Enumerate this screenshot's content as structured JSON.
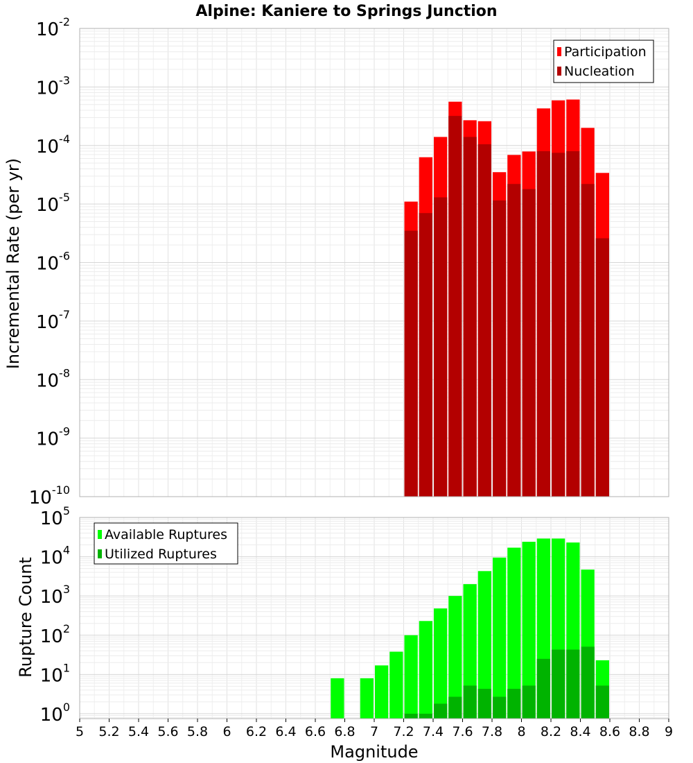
{
  "chart_data": [
    {
      "type": "bar",
      "title": "Alpine: Kaniere to Springs Junction",
      "ylabel": "Incremental Rate (per yr)",
      "xlabel": "",
      "xlim": [
        5,
        9
      ],
      "ylim": [
        1e-10,
        0.01
      ],
      "yscale": "log",
      "grid": true,
      "legend_position": "top-right",
      "x_ticks": [
        "5",
        "5.2",
        "5.4",
        "5.6",
        "5.8",
        "6",
        "6.2",
        "6.4",
        "6.6",
        "6.8",
        "7",
        "7.2",
        "7.4",
        "7.6",
        "7.8",
        "8",
        "8.2",
        "8.4",
        "8.6",
        "8.8",
        "9"
      ],
      "y_ticks": [
        {
          "base": "10",
          "exp": "-10"
        },
        {
          "base": "10",
          "exp": "-9"
        },
        {
          "base": "10",
          "exp": "-8"
        },
        {
          "base": "10",
          "exp": "-7"
        },
        {
          "base": "10",
          "exp": "-6"
        },
        {
          "base": "10",
          "exp": "-5"
        },
        {
          "base": "10",
          "exp": "-4"
        },
        {
          "base": "10",
          "exp": "-3"
        },
        {
          "base": "10",
          "exp": "-2"
        }
      ],
      "x": [
        7.25,
        7.35,
        7.45,
        7.55,
        7.65,
        7.75,
        7.85,
        7.95,
        8.05,
        8.15,
        8.25,
        8.35,
        8.45,
        8.55
      ],
      "series": [
        {
          "name": "Participation",
          "color": "#ff0000",
          "values": [
            1.1e-05,
            6.3e-05,
            0.00014,
            0.00056,
            0.00027,
            0.00026,
            3.5e-05,
            6.9e-05,
            7.9e-05,
            0.00043,
            0.00059,
            0.00061,
            0.0002,
            3.4e-05
          ]
        },
        {
          "name": "Nucleation",
          "color": "#b30000",
          "values": [
            3.5e-06,
            7e-06,
            1.3e-05,
            0.00032,
            0.00014,
            0.000105,
            1.15e-05,
            2.2e-05,
            1.8e-05,
            8e-05,
            7.5e-05,
            8e-05,
            2.2e-05,
            2.6e-06
          ]
        }
      ]
    },
    {
      "type": "bar",
      "title": "",
      "ylabel": "Rupture Count",
      "xlabel": "Magnitude",
      "xlim": [
        5,
        9
      ],
      "ylim": [
        0.75,
        100000.0
      ],
      "yscale": "log",
      "grid": true,
      "legend_position": "top-left",
      "x_ticks": [
        "5",
        "5.2",
        "5.4",
        "5.6",
        "5.8",
        "6",
        "6.2",
        "6.4",
        "6.6",
        "6.8",
        "7",
        "7.2",
        "7.4",
        "7.6",
        "7.8",
        "8",
        "8.2",
        "8.4",
        "8.6",
        "8.8",
        "9"
      ],
      "y_ticks": [
        {
          "base": "10",
          "exp": "0"
        },
        {
          "base": "10",
          "exp": "1"
        },
        {
          "base": "10",
          "exp": "2"
        },
        {
          "base": "10",
          "exp": "3"
        },
        {
          "base": "10",
          "exp": "4"
        },
        {
          "base": "10",
          "exp": "5"
        }
      ],
      "x": [
        6.75,
        6.95,
        7.05,
        7.15,
        7.25,
        7.35,
        7.45,
        7.55,
        7.65,
        7.75,
        7.85,
        7.95,
        8.05,
        8.15,
        8.25,
        8.35,
        8.45,
        8.55
      ],
      "series": [
        {
          "name": "Available Ruptures",
          "color": "#00ff00",
          "values": [
            8,
            8,
            17,
            38,
            100,
            230,
            480,
            1000,
            2000,
            4300,
            9500,
            17000,
            24000,
            29000,
            29000,
            23000,
            4700,
            23
          ]
        },
        {
          "name": "Utilized Ruptures",
          "color": "#00b300",
          "values": [
            0,
            0,
            0,
            0,
            1,
            1,
            1.8,
            2.7,
            5.2,
            4.3,
            2.7,
            4.3,
            5.2,
            25,
            43,
            43,
            51,
            5.2
          ]
        }
      ]
    }
  ]
}
